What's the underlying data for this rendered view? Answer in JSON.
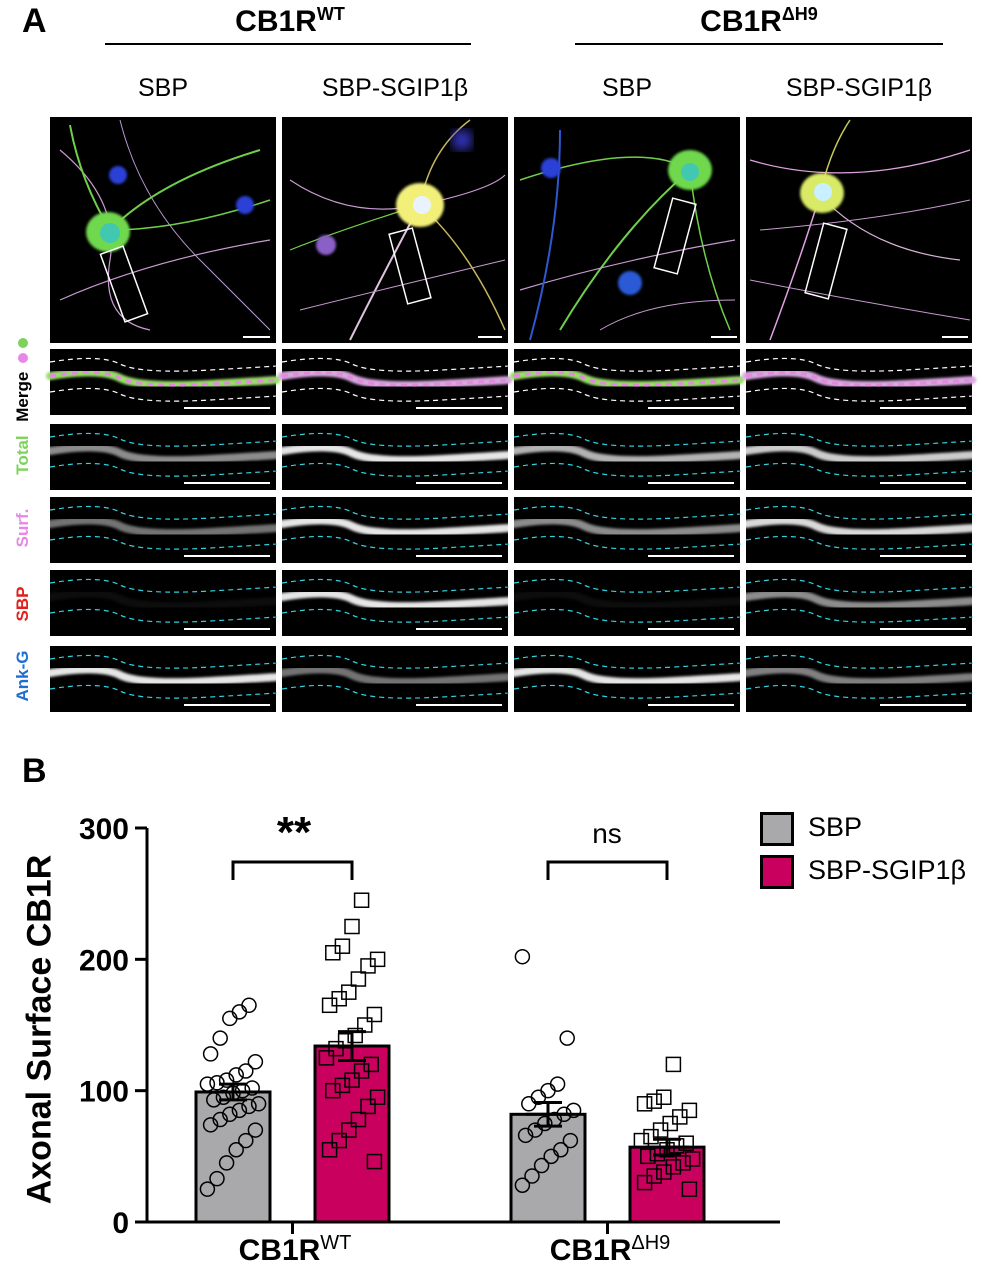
{
  "panelA": {
    "letter": "A",
    "groups": [
      {
        "name": "CB1R",
        "sup": "WT"
      },
      {
        "name": "CB1R",
        "sup": "ΔH9"
      }
    ],
    "columns": [
      "SBP",
      "SBP-SGIP1β",
      "SBP",
      "SBP-SGIP1β"
    ],
    "row_labels": {
      "merge": "Merge",
      "total": "Total",
      "surf": "Surf.",
      "sbp": "SBP",
      "ank": "Ank-G"
    },
    "colors": {
      "total": "#7dd35a",
      "surf": "#e888e6",
      "sbp": "#e0201c",
      "ank": "#1f6fd1"
    }
  },
  "panelB": {
    "letter": "B",
    "legend": [
      {
        "label": "SBP",
        "color": "#a9a9ab"
      },
      {
        "label": "SBP-SGIP1β",
        "color": "#c9005e"
      }
    ],
    "significance": [
      {
        "group": "CB1R WT",
        "label": "**"
      },
      {
        "group": "CB1R ΔH9",
        "label": "ns"
      }
    ]
  },
  "chart_data": {
    "type": "bar",
    "ylabel": "Axonal Surface CB1R",
    "ylim": [
      0,
      300
    ],
    "yticks": [
      0,
      100,
      200,
      300
    ],
    "categories": [
      {
        "name": "CB1R",
        "sup": "WT"
      },
      {
        "name": "CB1R",
        "sup": "ΔH9"
      }
    ],
    "series": [
      {
        "name": "SBP",
        "color": "#a9a9ab",
        "marker": "circle",
        "means": [
          99,
          82
        ],
        "sem": [
          6,
          9
        ],
        "points": [
          [
            25,
            33,
            45,
            55,
            62,
            70,
            74,
            78,
            82,
            85,
            88,
            90,
            93,
            95,
            98,
            100,
            102,
            105,
            106,
            108,
            112,
            115,
            122,
            128,
            140,
            155,
            160,
            165
          ],
          [
            28,
            35,
            43,
            50,
            55,
            62,
            66,
            70,
            75,
            78,
            82,
            85,
            90,
            95,
            100,
            105,
            140,
            202
          ]
        ]
      },
      {
        "name": "SBP-SGIP1β",
        "color": "#c9005e",
        "marker": "square",
        "means": [
          134,
          57
        ],
        "sem": [
          11,
          6
        ],
        "points": [
          [
            46,
            55,
            62,
            70,
            78,
            88,
            95,
            100,
            104,
            108,
            115,
            120,
            125,
            132,
            138,
            142,
            150,
            158,
            165,
            170,
            175,
            185,
            195,
            200,
            205,
            210,
            225,
            245
          ],
          [
            25,
            30,
            35,
            38,
            42,
            45,
            48,
            50,
            52,
            55,
            58,
            60,
            62,
            65,
            70,
            75,
            80,
            85,
            90,
            92,
            95,
            120
          ]
        ]
      }
    ]
  }
}
